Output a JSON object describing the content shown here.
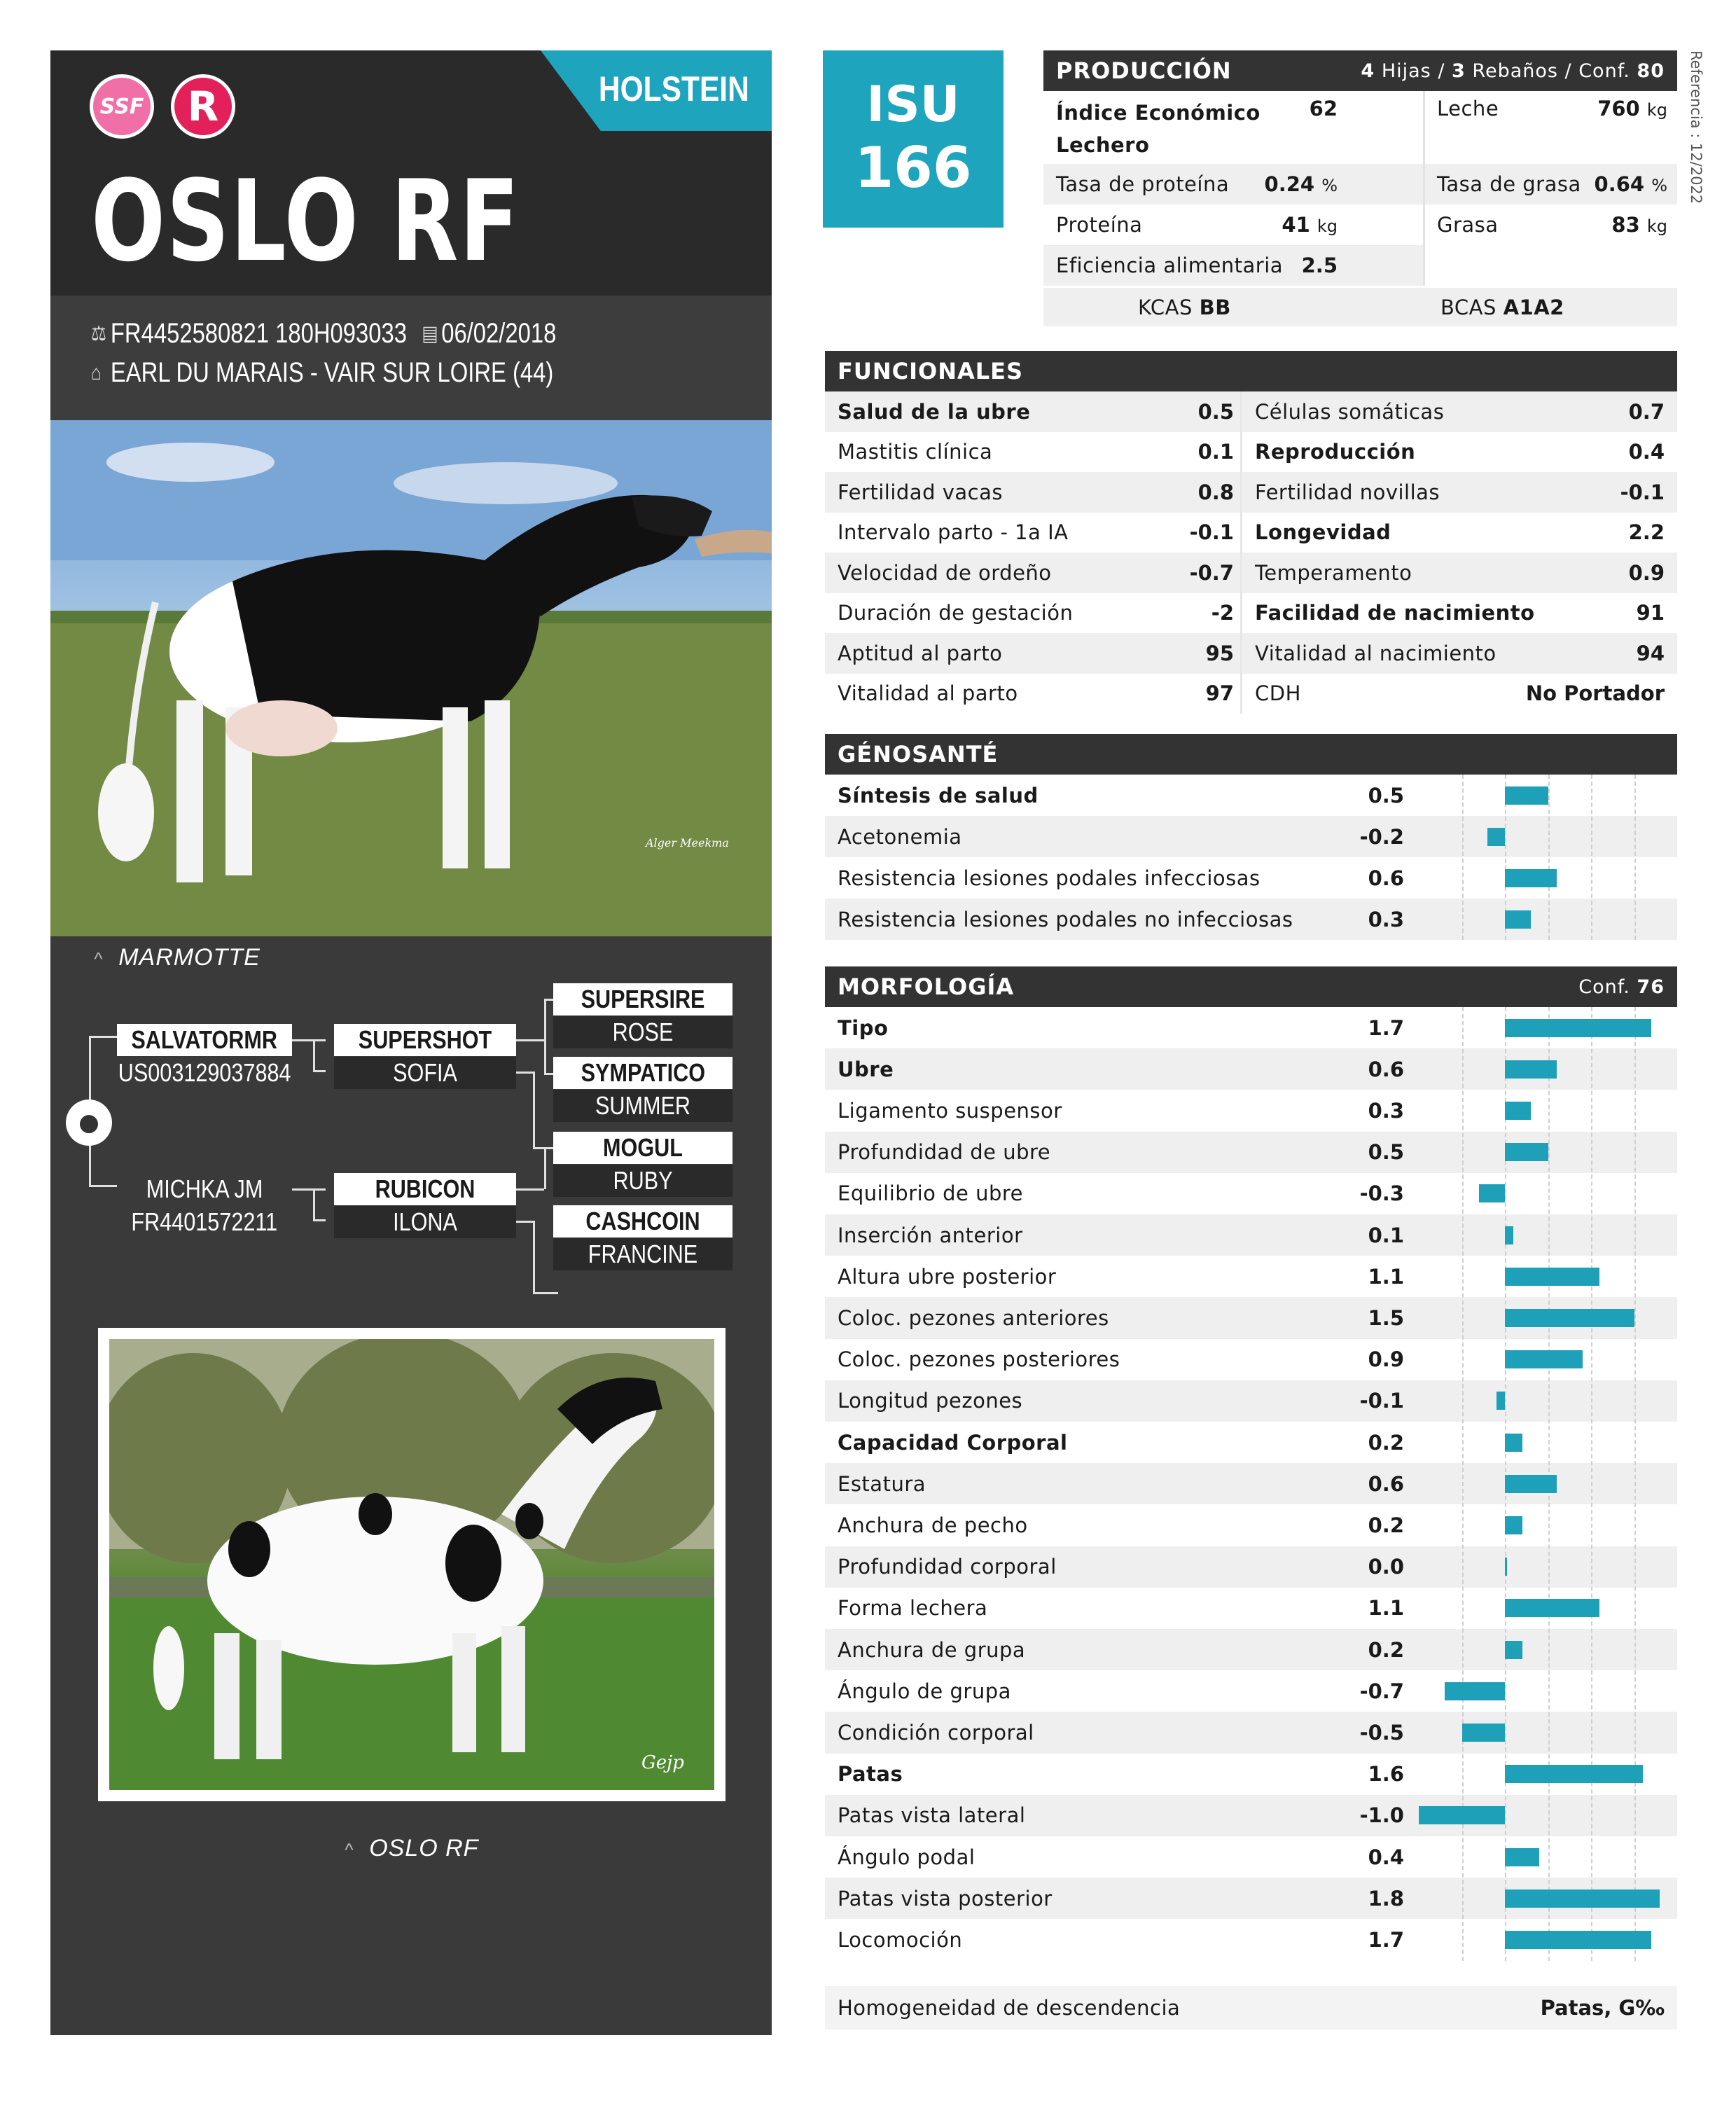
{
  "header": {
    "breed": "HOLSTEIN",
    "name": "OSLO RF",
    "logos": {
      "left": "SSF",
      "right": "R"
    },
    "id_numbers": "FR4452580821 180H093033",
    "birth_date": "06/02/2018",
    "breeder": "EARL DU MARAIS - VAIR SUR LOIRE (44)",
    "isu_label": "ISU",
    "isu_value": "166",
    "reference": "Referencia : 12/2022"
  },
  "photos": {
    "dam_caption": "MARMOTTE",
    "dam_credit": "Alger Meekma",
    "bull_caption": "OSLO RF",
    "bull_credit": "Gejp"
  },
  "pedigree": {
    "sire": {
      "name": "SALVATORMR",
      "id": "US003129037884"
    },
    "sire_sire": {
      "name": "SUPERSHOT",
      "dam": "SOFIA"
    },
    "sss": {
      "name": "SUPERSIRE",
      "dam": "ROSE"
    },
    "ssd": {
      "name": "SYMPATICO",
      "dam": "SUMMER"
    },
    "dam": {
      "name": "MICHKA JM",
      "id": "FR4401572211"
    },
    "dam_sire": {
      "name": "RUBICON",
      "dam": "ILONA"
    },
    "dss": {
      "name": "MOGUL",
      "dam": "RUBY"
    },
    "dsd": {
      "name": "CASHCOIN",
      "dam": "FRANCINE"
    }
  },
  "produccion": {
    "title": "PRODUCCIÓN",
    "hijas": "4",
    "hijas_label": "Hijas /",
    "rebanos": "3",
    "rebanos_label": "Rebaños / Conf.",
    "conf": "80",
    "rows": [
      {
        "l_label": "Índice Económico Lechero",
        "l_value": "62",
        "l_unit": "",
        "r_label": "Leche",
        "r_value": "760",
        "r_unit": "kg"
      },
      {
        "l_label": "Tasa de proteína",
        "l_value": "0.24",
        "l_unit": "%",
        "r_label": "Tasa de grasa",
        "r_value": "0.64",
        "r_unit": "%"
      },
      {
        "l_label": "Proteína",
        "l_value": "41",
        "l_unit": "kg",
        "r_label": "Grasa",
        "r_value": "83",
        "r_unit": "kg"
      },
      {
        "l_label": "Eficiencia alimentaria",
        "l_value": "2.5",
        "l_unit": "",
        "r_label": "",
        "r_value": "",
        "r_unit": ""
      }
    ],
    "kcas_label": "KCAS",
    "kcas": "BB",
    "bcas_label": "BCAS",
    "bcas": "A1A2"
  },
  "funcionales": {
    "title": "FUNCIONALES",
    "rows": [
      {
        "l_label": "Salud de la ubre",
        "l_value": "0.5",
        "l_bold": true,
        "r_label": "Células somáticas",
        "r_value": "0.7",
        "r_bold": false
      },
      {
        "l_label": "Mastitis clínica",
        "l_value": "0.1",
        "l_bold": false,
        "r_label": "Reproducción",
        "r_value": "0.4",
        "r_bold": true
      },
      {
        "l_label": "Fertilidad vacas",
        "l_value": "0.8",
        "l_bold": false,
        "r_label": "Fertilidad novillas",
        "r_value": "-0.1",
        "r_bold": false
      },
      {
        "l_label": "Intervalo parto - 1a IA",
        "l_value": "-0.1",
        "l_bold": false,
        "r_label": "Longevidad",
        "r_value": "2.2",
        "r_bold": true
      },
      {
        "l_label": "Velocidad de ordeño",
        "l_value": "-0.7",
        "l_bold": false,
        "r_label": "Temperamento",
        "r_value": "0.9",
        "r_bold": false
      },
      {
        "l_label": "Duración de gestación",
        "l_value": "-2",
        "l_bold": false,
        "r_label": "Facilidad de nacimiento",
        "r_value": "91",
        "r_bold": true
      },
      {
        "l_label": "Aptitud al parto",
        "l_value": "95",
        "l_bold": false,
        "r_label": "Vitalidad al nacimiento",
        "r_value": "94",
        "r_bold": false
      },
      {
        "l_label": "Vitalidad al parto",
        "l_value": "97",
        "l_bold": false,
        "r_label": "CDH",
        "r_value": "No Portador",
        "r_bold": false
      }
    ]
  },
  "chart_data": [
    {
      "type": "bar",
      "title": "GÉNOSANTÉ",
      "orientation": "horizontal",
      "xlim": [
        -1,
        2
      ],
      "grid": true,
      "categories": [
        "Síntesis de salud",
        "Acetonemia",
        "Resistencia lesiones podales infecciosas",
        "Resistencia lesiones podales no infecciosas"
      ],
      "values": [
        0.5,
        -0.2,
        0.6,
        0.3
      ],
      "labels": [
        "0.5",
        "-0.2",
        "0.6",
        "0.3"
      ],
      "bold": [
        true,
        false,
        false,
        false
      ]
    },
    {
      "type": "bar",
      "title": "MORFOLOGÍA",
      "conf_label": "Conf.",
      "conf": "76",
      "orientation": "horizontal",
      "xlim": [
        -1,
        2
      ],
      "grid": true,
      "categories": [
        "Tipo",
        "Ubre",
        "Ligamento suspensor",
        "Profundidad de ubre",
        "Equilibrio de ubre",
        "Inserción anterior",
        "Altura ubre posterior",
        "Coloc. pezones anteriores",
        "Coloc. pezones posteriores",
        "Longitud pezones",
        "Capacidad Corporal",
        "Estatura",
        "Anchura de pecho",
        "Profundidad corporal",
        "Forma lechera",
        "Anchura de grupa",
        "Ángulo de grupa",
        "Condición corporal",
        "Patas",
        "Patas vista lateral",
        "Ángulo podal",
        "Patas vista posterior",
        "Locomoción"
      ],
      "values": [
        1.7,
        0.6,
        0.3,
        0.5,
        -0.3,
        0.1,
        1.1,
        1.5,
        0.9,
        -0.1,
        0.2,
        0.6,
        0.2,
        0.0,
        1.1,
        0.2,
        -0.7,
        -0.5,
        1.6,
        -1.0,
        0.4,
        1.8,
        1.7
      ],
      "labels": [
        "1.7",
        "0.6",
        "0.3",
        "0.5",
        "-0.3",
        "0.1",
        "1.1",
        "1.5",
        "0.9",
        "-0.1",
        "0.2",
        "0.6",
        "0.2",
        "0.0",
        "1.1",
        "0.2",
        "-0.7",
        "-0.5",
        "1.6",
        "-1.0",
        "0.4",
        "1.8",
        "1.7"
      ],
      "bold": [
        true,
        true,
        false,
        false,
        false,
        false,
        false,
        false,
        false,
        false,
        true,
        false,
        false,
        false,
        false,
        false,
        false,
        false,
        true,
        false,
        false,
        false,
        false
      ]
    }
  ],
  "homogeneidad": {
    "label": "Homogeneidad de descendencia",
    "value": "Patas, G‰"
  }
}
